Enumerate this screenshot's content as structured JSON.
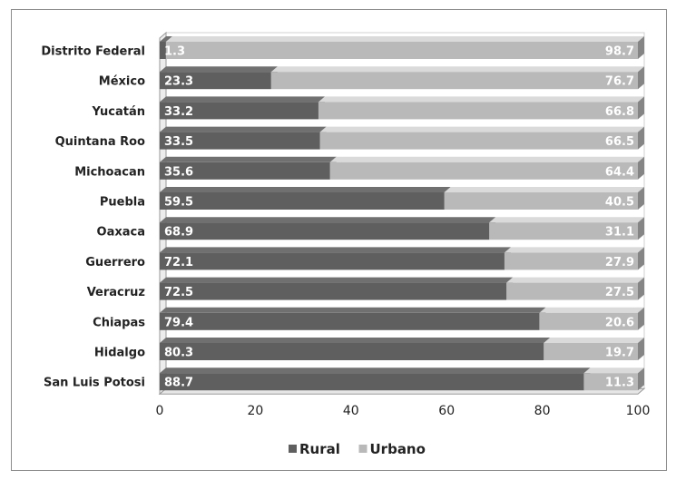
{
  "chart_data": {
    "type": "bar",
    "orientation": "horizontal",
    "stacked": true,
    "categories": [
      "Distrito Federal",
      "México",
      "Yucatán",
      "Quintana Roo",
      "Michoacan",
      "Puebla",
      "Oaxaca",
      "Guerrero",
      "Veracruz",
      "Chiapas",
      "Hidalgo",
      "San Luis Potosi"
    ],
    "series": [
      {
        "name": "Rural",
        "color": "#5f5f5f",
        "values": [
          1.3,
          23.3,
          33.2,
          33.5,
          35.6,
          59.5,
          68.9,
          72.1,
          72.5,
          79.4,
          80.3,
          88.7
        ]
      },
      {
        "name": "Urbano",
        "color": "#b9b9b9",
        "values": [
          98.7,
          76.7,
          66.8,
          66.5,
          64.4,
          40.5,
          31.1,
          27.9,
          27.5,
          20.6,
          19.7,
          11.3
        ]
      }
    ],
    "data_labels": {
      "Rural": [
        "1.3",
        "23.3",
        "33.2",
        "33.5",
        "35.6",
        "59.5",
        "68.9",
        "72.1",
        "72.5",
        "79.4",
        "80.3",
        "88.7"
      ],
      "Urbano": [
        "98.7",
        "76.7",
        "66.8",
        "66.5",
        "64.4",
        "40.5",
        "31.1",
        "27.9",
        "27.5",
        "20.6",
        "19.7",
        "11.3"
      ]
    },
    "xlim": [
      0,
      100
    ],
    "xticks": [
      "0",
      "20",
      "40",
      "60",
      "80",
      "100"
    ],
    "grid": false,
    "legend_position": "bottom",
    "three_d": true
  }
}
